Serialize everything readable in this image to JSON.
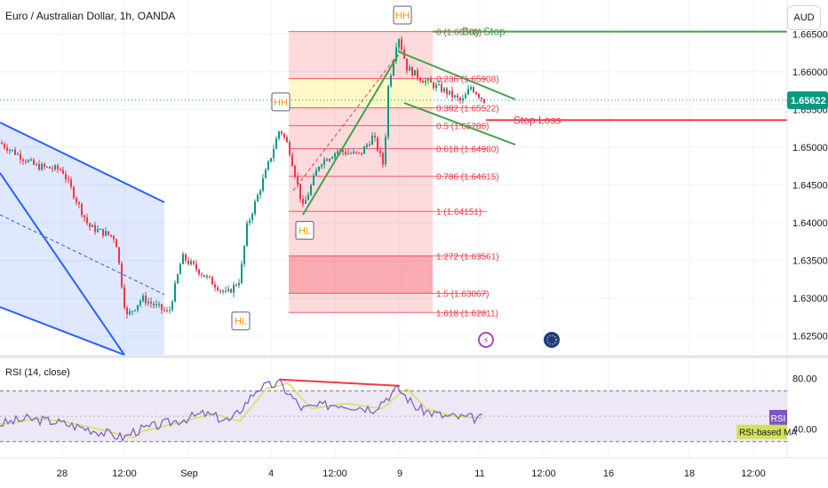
{
  "header": {
    "title": "Euro / Australian Dollar, 1h, OANDA",
    "currency_button": "AUD"
  },
  "rsi_panel": {
    "title": "RSI (14, close)",
    "badge_rsi": "RSI",
    "badge_ma": "RSI-based MA"
  },
  "colors": {
    "bull": "#089981",
    "bear": "#f23645",
    "trend_green": "#43a047",
    "channel_blue": "#2962ff",
    "fib_red": "#f23645",
    "last_price": "#089981",
    "rsi_line": "#7e57c2",
    "rsi_ma": "#d4e157",
    "rsi_bg": "#ede7f6"
  },
  "chart_data": {
    "type": "candlestick",
    "price_axis": {
      "min": 1.6225,
      "max": 1.6695,
      "ticks": [
        "1.62500",
        "1.63000",
        "1.63500",
        "1.64000",
        "1.64500",
        "1.65000",
        "1.65500",
        "1.66000",
        "1.66500"
      ],
      "last_price": "1.65622",
      "last_price_value": 1.65622
    },
    "time_axis": {
      "labels": [
        "28",
        "12:00",
        "Sep",
        "4",
        "12:00",
        "9",
        "11",
        "12:00",
        "16",
        "18",
        "12:00"
      ]
    },
    "fibonacci": {
      "levels": [
        {
          "ratio": 0,
          "label": "0 (1.66532)",
          "price": 1.66532
        },
        {
          "ratio": 0.236,
          "label": "0.236 (1.65908)",
          "price": 1.65908
        },
        {
          "ratio": 0.382,
          "label": "0.382 (1.65522)",
          "price": 1.65522
        },
        {
          "ratio": 0.5,
          "label": "0.5 (1.65286)",
          "price": 1.65286
        },
        {
          "ratio": 0.618,
          "label": "0.618 (1.64980)",
          "price": 1.6498
        },
        {
          "ratio": 0.786,
          "label": "0.786 (1.64615)",
          "price": 1.64615
        },
        {
          "ratio": 1,
          "label": "1 (1.64151)",
          "price": 1.64151
        },
        {
          "ratio": 1.272,
          "label": "1.272 (1.63561)",
          "price": 1.63561
        },
        {
          "ratio": 1.5,
          "label": "1.5 (1.63067)",
          "price": 1.63067
        },
        {
          "ratio": 1.618,
          "label": "1.618 (1.62811)",
          "price": 1.62811
        }
      ]
    },
    "annotations": [
      {
        "text": "HH",
        "price": 1.6675
      },
      {
        "text": "HH",
        "price": 1.656
      },
      {
        "text": "HL",
        "price": 1.639
      },
      {
        "text": "HL",
        "price": 1.627
      },
      {
        "text": "Buy Stop",
        "price": 1.66532
      },
      {
        "text": "Stop Loss",
        "price": 1.6536
      }
    ],
    "rsi": {
      "ticks": [
        "80.00",
        "40.00"
      ],
      "levels": [
        70,
        30
      ]
    }
  }
}
